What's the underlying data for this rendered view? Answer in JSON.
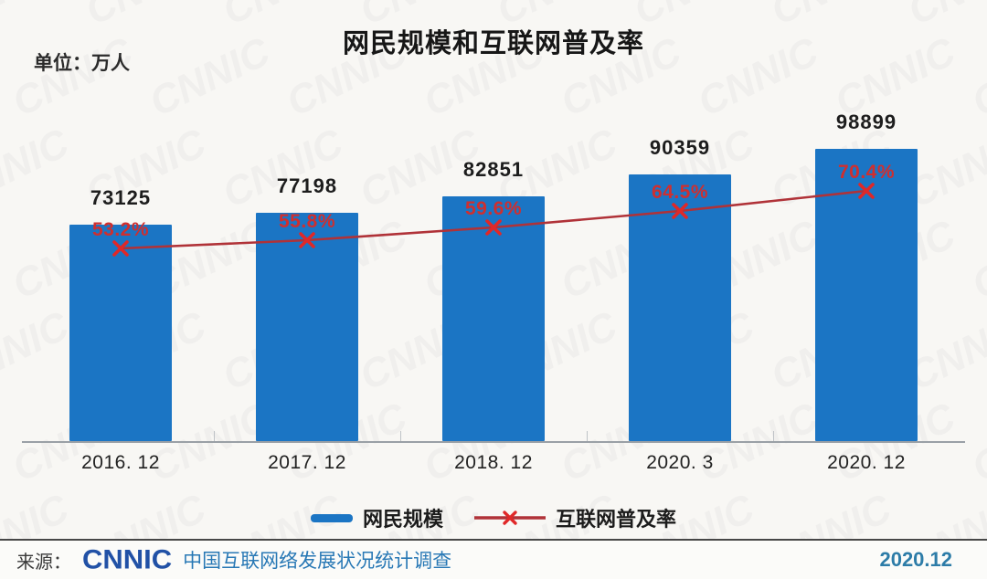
{
  "title": "网民规模和互联网普及率",
  "unit_label": "单位：万人",
  "watermark_text": "CNNIC",
  "chart_data": {
    "type": "bar",
    "subtype": "bar-line-combo",
    "title": "网民规模和互联网普及率",
    "unit": "万人",
    "categories": [
      "2016. 12",
      "2017. 12",
      "2018. 12",
      "2020. 3",
      "2020. 12"
    ],
    "series": [
      {
        "name": "网民规模",
        "type": "bar",
        "unit": "万人",
        "values": [
          73125,
          77198,
          82851,
          90359,
          98899
        ],
        "color": "#1b75c4"
      },
      {
        "name": "互联网普及率",
        "type": "line",
        "unit": "%",
        "values": [
          53.2,
          55.8,
          59.6,
          64.5,
          70.4
        ],
        "marker": "x",
        "line_color": "#b03238",
        "marker_color": "#e02828"
      }
    ],
    "grid": false,
    "legend_position": "bottom",
    "bar_axis_min": 0
  },
  "legend": {
    "items": [
      {
        "label": "网民规模"
      },
      {
        "label": "互联网普及率"
      }
    ]
  },
  "footer": {
    "source_label": "来源：",
    "logo_text": "CNNIC",
    "survey_name": "中国互联网络发展状况统计调查",
    "date": "2020.12"
  },
  "colors": {
    "bar": "#1b75c4",
    "line": "#b03238",
    "marker": "#e02828",
    "percent_label": "#cf2f2f",
    "logo_blue": "#2151a6",
    "survey_blue": "#2878b5",
    "date_blue": "#2d7ca8"
  }
}
